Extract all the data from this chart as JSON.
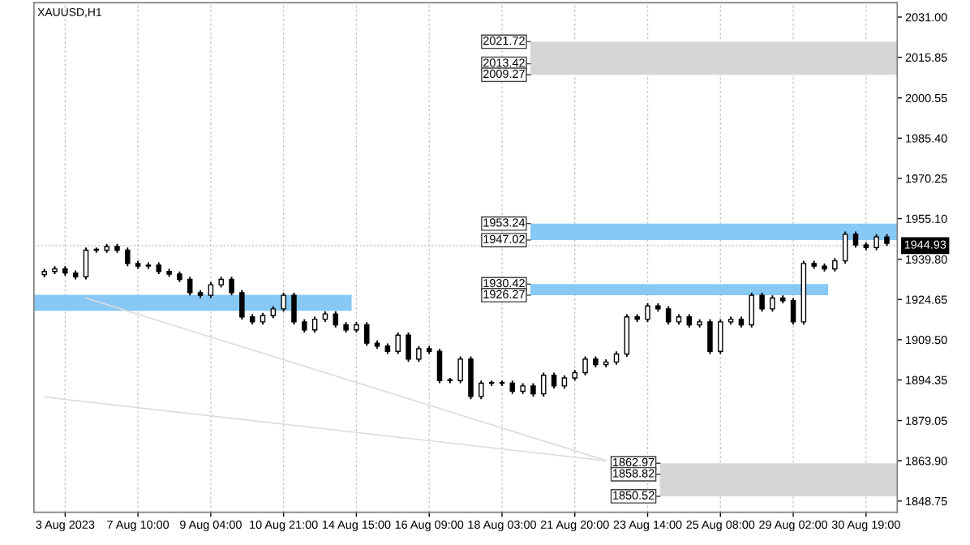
{
  "chart_data": {
    "type": "candlestick",
    "title": "XAUUSD,H1",
    "color": "#000000",
    "categories": [
      null,
      null,
      "3 Aug 2023",
      null,
      null,
      null,
      null,
      null,
      null,
      "7 Aug 10:00",
      null,
      null,
      null,
      null,
      null,
      null,
      "9 Aug 04:00",
      null,
      null,
      null,
      null,
      null,
      null,
      "10 Aug 21:00",
      null,
      null,
      null,
      null,
      null,
      null,
      "14 Aug 15:00",
      null,
      null,
      null,
      null,
      null,
      null,
      "16 Aug 09:00",
      null,
      null,
      null,
      null,
      null,
      null,
      "18 Aug 03:00",
      null,
      null,
      null,
      null,
      null,
      null,
      "21 Aug 20:00",
      null,
      null,
      null,
      null,
      null,
      null,
      "23 Aug 14:00",
      null,
      null,
      null,
      null,
      null,
      null,
      "25 Aug 08:00",
      null,
      null,
      null,
      null,
      null,
      null,
      "29 Aug 02:00",
      null,
      null,
      null,
      null,
      null,
      null,
      "30 Aug 19:00",
      null,
      null
    ],
    "ohlc": [
      [
        1934.0,
        1936.2,
        1933.0,
        1935.2
      ],
      [
        1935.2,
        1937.2,
        1934.2,
        1936.2
      ],
      [
        1936.2,
        1937.2,
        1933.6,
        1934.6
      ],
      [
        1934.6,
        1935.6,
        1932.2,
        1933.2
      ],
      [
        1933.2,
        1944.2,
        1932.2,
        1943.2
      ],
      [
        1943.2,
        1944.2,
        1942.2,
        1943.2
      ],
      [
        1943.2,
        1945.6,
        1942.2,
        1944.6
      ],
      [
        1944.6,
        1945.6,
        1942.2,
        1943.2
      ],
      [
        1943.2,
        1944.2,
        1937.2,
        1938.2
      ],
      [
        1938.2,
        1939.2,
        1936.2,
        1937.2
      ],
      [
        1937.2,
        1938.6,
        1936.2,
        1937.6
      ],
      [
        1937.6,
        1938.6,
        1934.2,
        1935.2
      ],
      [
        1935.2,
        1936.2,
        1933.2,
        1934.2
      ],
      [
        1934.2,
        1935.2,
        1931.2,
        1932.2
      ],
      [
        1932.2,
        1933.2,
        1926.2,
        1927.2
      ],
      [
        1927.2,
        1928.2,
        1925.2,
        1926.2
      ],
      [
        1926.2,
        1931.2,
        1925.2,
        1930.2
      ],
      [
        1930.2,
        1933.2,
        1929.2,
        1932.2
      ],
      [
        1932.2,
        1933.2,
        1926.2,
        1927.2
      ],
      [
        1927.2,
        1928.2,
        1917.1,
        1918.1
      ],
      [
        1918.1,
        1919.1,
        1915.2,
        1916.2
      ],
      [
        1916.2,
        1919.6,
        1915.2,
        1918.6
      ],
      [
        1918.6,
        1922.1,
        1917.6,
        1921.1
      ],
      [
        1921.1,
        1927.2,
        1920.1,
        1926.2
      ],
      [
        1926.2,
        1927.2,
        1915.2,
        1916.2
      ],
      [
        1916.2,
        1917.2,
        1912.2,
        1913.2
      ],
      [
        1913.2,
        1918.2,
        1912.2,
        1917.2
      ],
      [
        1917.2,
        1920.2,
        1916.2,
        1919.2
      ],
      [
        1919.2,
        1920.2,
        1914.1,
        1915.1
      ],
      [
        1915.1,
        1916.1,
        1912.2,
        1913.2
      ],
      [
        1913.2,
        1916.1,
        1912.2,
        1915.1
      ],
      [
        1915.1,
        1916.1,
        1907.2,
        1908.2
      ],
      [
        1908.2,
        1909.2,
        1906.1,
        1907.1
      ],
      [
        1907.1,
        1908.1,
        1904.1,
        1905.1
      ],
      [
        1905.1,
        1912.2,
        1904.1,
        1911.2
      ],
      [
        1911.2,
        1912.2,
        1901.2,
        1902.2
      ],
      [
        1902.2,
        1907.1,
        1901.2,
        1906.1
      ],
      [
        1906.1,
        1907.1,
        1904.1,
        1905.1
      ],
      [
        1905.1,
        1906.1,
        1893.1,
        1894.1
      ],
      [
        1894.1,
        1895.1,
        1893.1,
        1894.1
      ],
      [
        1894.1,
        1903.2,
        1893.1,
        1902.2
      ],
      [
        1902.2,
        1903.2,
        1887.1,
        1888.1
      ],
      [
        1888.1,
        1894.1,
        1887.1,
        1893.1
      ],
      [
        1893.1,
        1894.1,
        1892.1,
        1893.1
      ],
      [
        1893.1,
        1894.1,
        1892.1,
        1893.1
      ],
      [
        1893.1,
        1894.1,
        1889.1,
        1890.1
      ],
      [
        1890.1,
        1893.1,
        1889.1,
        1892.1
      ],
      [
        1892.1,
        1893.1,
        1888.1,
        1889.1
      ],
      [
        1889.1,
        1897.1,
        1888.1,
        1896.1
      ],
      [
        1896.1,
        1897.1,
        1891.1,
        1892.1
      ],
      [
        1892.1,
        1896.1,
        1891.1,
        1895.1
      ],
      [
        1895.1,
        1898.1,
        1894.1,
        1897.1
      ],
      [
        1897.1,
        1903.2,
        1896.1,
        1902.2
      ],
      [
        1902.2,
        1903.2,
        1899.1,
        1900.1
      ],
      [
        1900.1,
        1902.1,
        1899.1,
        1901.1
      ],
      [
        1901.1,
        1905.1,
        1900.1,
        1904.1
      ],
      [
        1904.1,
        1919.1,
        1903.1,
        1918.1
      ],
      [
        1918.1,
        1919.1,
        1916.2,
        1917.2
      ],
      [
        1917.2,
        1923.2,
        1916.2,
        1922.2
      ],
      [
        1922.2,
        1923.2,
        1920.1,
        1921.1
      ],
      [
        1921.1,
        1922.1,
        1915.2,
        1916.2
      ],
      [
        1916.2,
        1919.1,
        1915.2,
        1918.1
      ],
      [
        1918.1,
        1919.1,
        1914.1,
        1915.1
      ],
      [
        1915.1,
        1917.2,
        1914.1,
        1916.2
      ],
      [
        1916.2,
        1917.2,
        1904.1,
        1905.1
      ],
      [
        1905.1,
        1917.2,
        1904.1,
        1916.2
      ],
      [
        1916.2,
        1918.2,
        1915.2,
        1917.2
      ],
      [
        1917.2,
        1918.2,
        1914.1,
        1915.1
      ],
      [
        1915.1,
        1927.2,
        1914.1,
        1926.2
      ],
      [
        1926.2,
        1927.2,
        1920.1,
        1921.1
      ],
      [
        1921.1,
        1926.2,
        1920.1,
        1925.2
      ],
      [
        1925.2,
        1926.2,
        1923.2,
        1924.2
      ],
      [
        1924.2,
        1925.2,
        1915.2,
        1916.2
      ],
      [
        1916.2,
        1939.2,
        1915.2,
        1938.2
      ],
      [
        1938.2,
        1939.2,
        1936.2,
        1937.2
      ],
      [
        1937.2,
        1938.2,
        1935.2,
        1936.2
      ],
      [
        1936.2,
        1940.2,
        1935.2,
        1939.2
      ],
      [
        1939.2,
        1950.2,
        1938.2,
        1949.2
      ],
      [
        1949.2,
        1950.2,
        1944.2,
        1945.2
      ],
      [
        1945.2,
        1946.2,
        1943.2,
        1944.2
      ],
      [
        1944.2,
        1949.2,
        1943.2,
        1948.2
      ],
      [
        1948.2,
        1949.2,
        1944.8,
        1945.8
      ]
    ],
    "series": [
      {
        "type": "line",
        "color": "#dcdcdc",
        "values": [
          null,
          null,
          null,
          null,
          1925.2,
          null,
          null,
          null,
          null,
          null,
          null,
          null,
          null,
          null,
          null,
          null,
          null,
          null,
          null,
          null,
          null,
          null,
          null,
          null,
          null,
          null,
          null,
          null,
          null,
          null,
          null,
          null,
          null,
          null,
          null,
          null,
          null,
          null,
          null,
          null,
          null,
          null,
          null,
          null,
          null,
          null,
          null,
          null,
          null,
          null,
          null,
          null,
          null,
          null,
          1864.0,
          null,
          null,
          null,
          null,
          null,
          null,
          null,
          null,
          null,
          null,
          null,
          null,
          null,
          null,
          null,
          null,
          null,
          null,
          null,
          null,
          null,
          null,
          null,
          null,
          null,
          null,
          null
        ]
      },
      {
        "type": "line",
        "color": "#dcdcdc",
        "values": [
          1887.9,
          null,
          null,
          null,
          null,
          null,
          null,
          null,
          null,
          null,
          null,
          null,
          null,
          null,
          null,
          null,
          null,
          null,
          null,
          null,
          null,
          null,
          null,
          null,
          null,
          null,
          null,
          null,
          null,
          null,
          null,
          null,
          null,
          null,
          null,
          null,
          null,
          null,
          null,
          null,
          null,
          null,
          null,
          null,
          null,
          null,
          null,
          null,
          null,
          null,
          null,
          null,
          null,
          null,
          1863.9,
          null,
          null,
          null,
          null,
          null,
          null,
          null,
          null,
          null,
          null,
          null,
          null,
          null,
          null,
          null,
          null,
          null,
          null,
          null,
          null,
          null,
          null,
          null,
          null,
          null,
          null,
          null
        ]
      }
    ],
    "ylim": [
      1844.5,
      2036.4
    ],
    "yticks": [
      {
        "value": 2031.0,
        "label": "2031.00"
      },
      {
        "value": 2015.85,
        "label": "2015.85"
      },
      {
        "value": 2000.55,
        "label": "2000.55"
      },
      {
        "value": 1985.4,
        "label": "1985.40"
      },
      {
        "value": 1970.25,
        "label": "1970.25"
      },
      {
        "value": 1955.1,
        "label": "1955.10"
      },
      {
        "value": 1939.8,
        "label": "1939.80"
      },
      {
        "value": 1924.65,
        "label": "1924.65"
      },
      {
        "value": 1909.5,
        "label": "1909.50"
      },
      {
        "value": 1894.35,
        "label": "1894.35"
      },
      {
        "value": 1879.05,
        "label": "1879.05"
      },
      {
        "value": 1863.9,
        "label": "1863.90"
      },
      {
        "value": 1848.75,
        "label": "1848.75"
      }
    ],
    "grid": "x",
    "bands": [
      {
        "axis": "y",
        "from": 2009.27,
        "to": 2021.72,
        "color": "#d6d6d6"
      },
      {
        "axis": "y",
        "from": 1947.02,
        "to": 1953.24,
        "color": "#87c8f5"
      },
      {
        "axis": "y",
        "from": 1926.27,
        "to": 1930.42,
        "color": "#87c8f5"
      },
      {
        "axis": "y",
        "from": 1920.4,
        "to": 1926.4,
        "color": "#87c8f5"
      },
      {
        "axis": "y",
        "from": 1850.52,
        "to": 1862.97,
        "color": "#d6d6d6"
      }
    ],
    "ref_lines": [
      {
        "axis": "y",
        "value": 1944.93,
        "label": "1944.93",
        "color": "#c8c8c8",
        "line_style": "dotted"
      },
      {
        "axis": "y",
        "value": 2021.72,
        "label": "2021.72",
        "color": "#404040"
      },
      {
        "axis": "y",
        "value": 2013.42,
        "label": "2013.42",
        "color": "#404040"
      },
      {
        "axis": "y",
        "value": 2009.27,
        "label": "2009.27",
        "color": "#404040"
      },
      {
        "axis": "y",
        "value": 1953.24,
        "label": "1953.24",
        "color": "#404040"
      },
      {
        "axis": "y",
        "value": 1947.02,
        "label": "1947.02",
        "color": "#404040"
      },
      {
        "axis": "y",
        "value": 1930.42,
        "label": "1930.42",
        "color": "#404040"
      },
      {
        "axis": "y",
        "value": 1926.27,
        "label": "1926.27",
        "color": "#404040"
      },
      {
        "axis": "y",
        "value": 1862.97,
        "label": "1862.97",
        "color": "#404040"
      },
      {
        "axis": "y",
        "value": 1858.82,
        "label": "1858.82",
        "color": "#404040"
      },
      {
        "axis": "y",
        "value": 1850.52,
        "label": "1850.52",
        "color": "#404040"
      }
    ]
  }
}
